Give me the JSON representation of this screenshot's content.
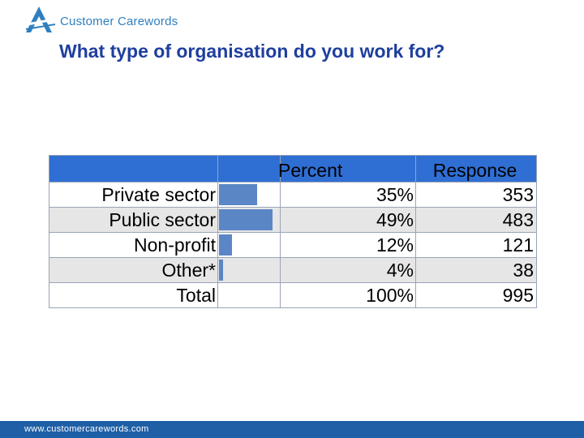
{
  "logo": {
    "text": "Customer Carewords",
    "brand_color": "#2f7fbf"
  },
  "title": "What type of organisation do you work for?",
  "chart_data": {
    "type": "table",
    "columns": [
      "",
      "Percent",
      "",
      "Response"
    ],
    "bar_color": "#5b86c6",
    "header_color": "#2f6fd4",
    "rows": [
      {
        "label": "Private sector",
        "percent_value": 35,
        "percent": "35%",
        "response": "353"
      },
      {
        "label": "Public sector",
        "percent_value": 49,
        "percent": "49%",
        "response": "483"
      },
      {
        "label": "Non-profit",
        "percent_value": 12,
        "percent": "12%",
        "response": "121"
      },
      {
        "label": "Other*",
        "percent_value": 4,
        "percent": "4%",
        "response": "38"
      }
    ],
    "total": {
      "label": "Total",
      "percent": "100%",
      "response": "995"
    }
  },
  "footer": {
    "url": "www.customercarewords.com",
    "color": "#1f5fa6"
  }
}
